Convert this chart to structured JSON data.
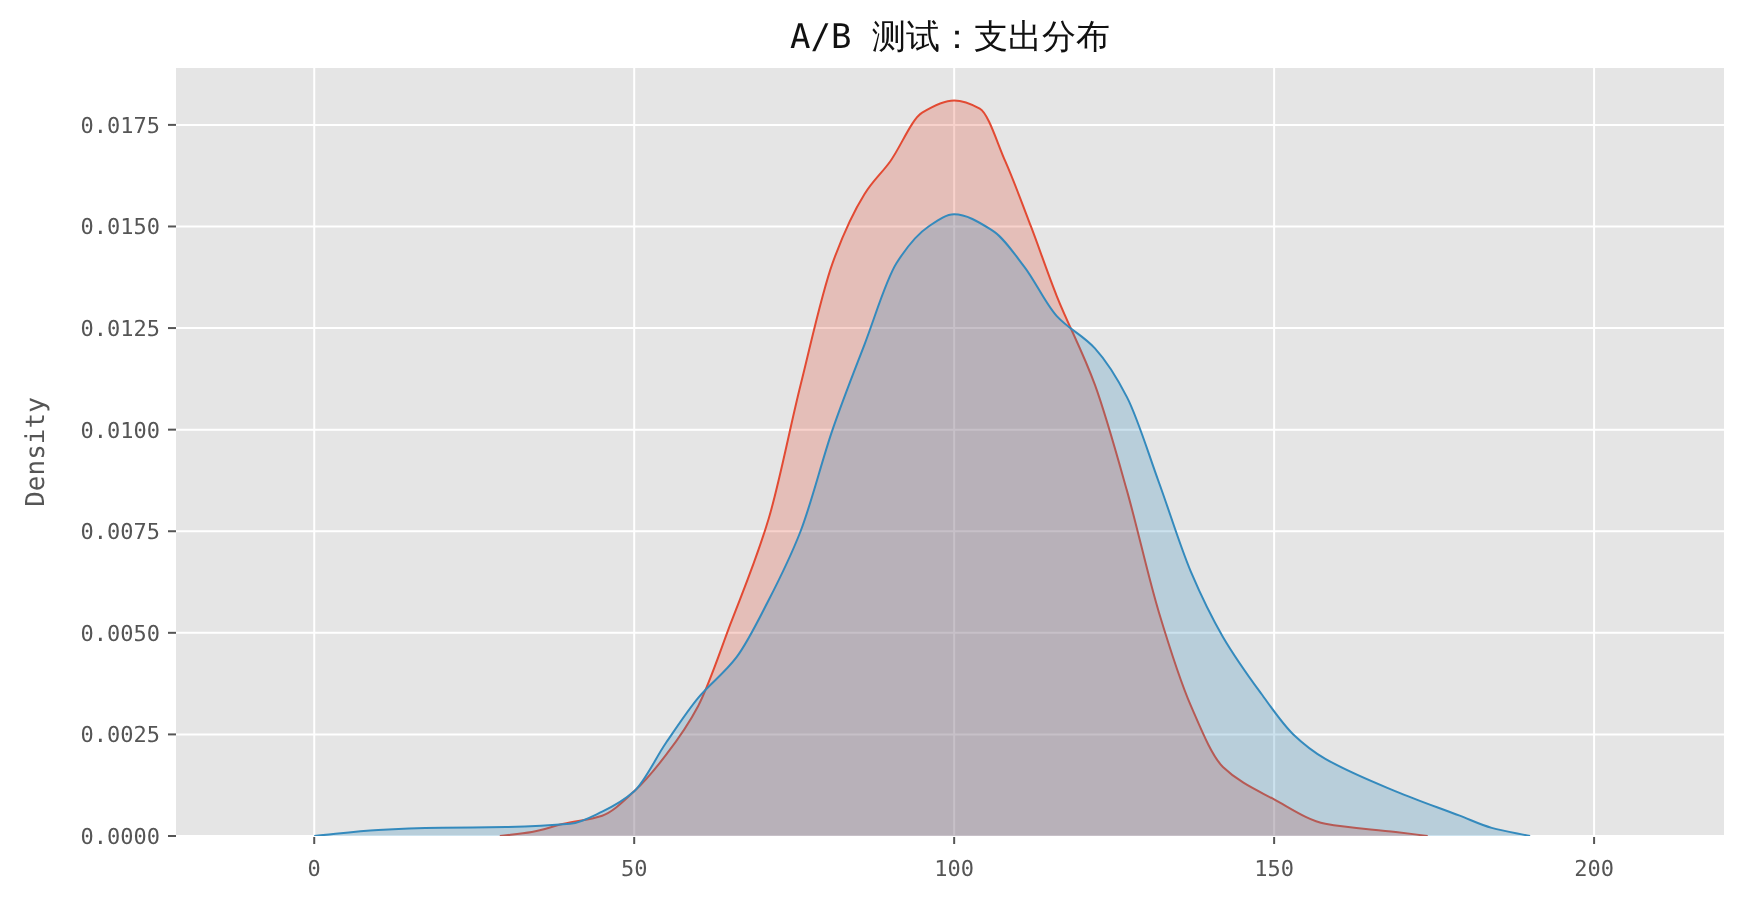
{
  "chart_data": {
    "type": "area",
    "title": "A/B 测试：支出分布",
    "ylabel": "Density",
    "xlim": [
      -21.6,
      220.3
    ],
    "ylim": [
      0,
      0.0189
    ],
    "xticks": [
      0,
      50,
      100,
      150,
      200
    ],
    "yticks": [
      {
        "value": 0,
        "label": "0.0000"
      },
      {
        "value": 0.0025,
        "label": "0.0025"
      },
      {
        "value": 0.005,
        "label": "0.0050"
      },
      {
        "value": 0.0075,
        "label": "0.0075"
      },
      {
        "value": 0.01,
        "label": "0.0100"
      },
      {
        "value": 0.0125,
        "label": "0.0125"
      },
      {
        "value": 0.015,
        "label": "0.0150"
      },
      {
        "value": 0.0175,
        "label": "0.0175"
      }
    ],
    "grid": true,
    "series": [
      {
        "color": "#e24a33",
        "x": [
          29,
          34,
          39,
          45,
          50,
          55,
          60,
          65,
          71,
          76,
          81,
          86,
          90,
          95,
          100,
          104,
          108,
          112,
          116,
          122,
          127,
          132,
          137,
          142,
          150,
          158,
          169,
          174
        ],
        "values": [
          0,
          0.0001,
          0.0003,
          0.0005,
          0.0011,
          0.002,
          0.0032,
          0.0052,
          0.0078,
          0.0111,
          0.0141,
          0.0158,
          0.0166,
          0.0178,
          0.0181,
          0.0179,
          0.0166,
          0.015,
          0.0133,
          0.0111,
          0.0085,
          0.0055,
          0.0032,
          0.0017,
          0.0009,
          0.0003,
          0.0001,
          0
        ]
      },
      {
        "color": "#348abd",
        "x": [
          0,
          10,
          20,
          30,
          40,
          45,
          50,
          55,
          60,
          66,
          71,
          76,
          81,
          86,
          91,
          96,
          100,
          106,
          111,
          116,
          122,
          127,
          132,
          137,
          142,
          148,
          153,
          158,
          169,
          179,
          184,
          190
        ],
        "values": [
          0,
          0.00015,
          0.0002,
          0.00022,
          0.0003,
          0.0006,
          0.0011,
          0.0023,
          0.0034,
          0.0044,
          0.0058,
          0.0075,
          0.01,
          0.0121,
          0.0141,
          0.015,
          0.0153,
          0.0149,
          0.014,
          0.0128,
          0.012,
          0.0108,
          0.0087,
          0.0065,
          0.0049,
          0.0035,
          0.0025,
          0.0019,
          0.0011,
          0.0005,
          0.0002,
          0
        ]
      }
    ]
  }
}
